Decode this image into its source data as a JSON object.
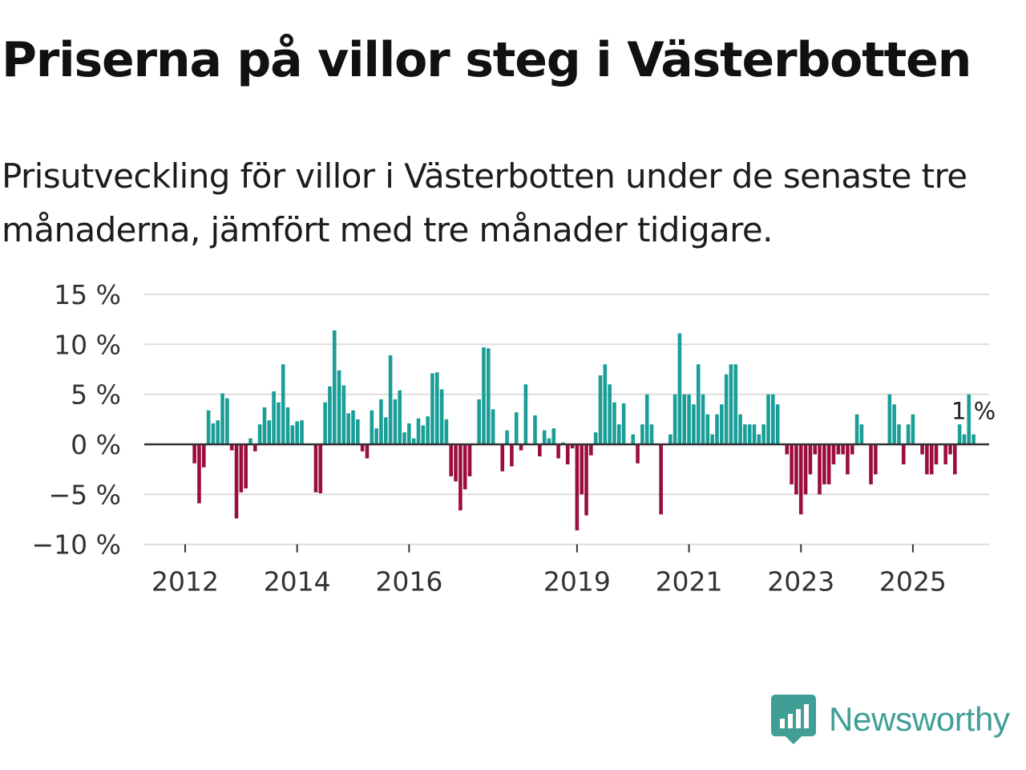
{
  "title": "Priserna på villor steg i Västerbotten",
  "subtitle": "Prisutveckling för villor i Västerbotten under de senaste tre månaderna, jämfört med tre månader tidigare.",
  "brand": {
    "name": "Newsworthy",
    "color": "#3f9f96",
    "icon": "newsworthy-logo-icon"
  },
  "colors": {
    "positive": "#1a9e98",
    "negative": "#9c0d3f",
    "grid": "#dddddd",
    "zero_line": "#333333",
    "text": "#333333"
  },
  "chart_data": {
    "type": "bar",
    "title": "Priserna på villor steg i Västerbotten",
    "subtitle": "Prisutveckling för villor i Västerbotten under de senaste tre månaderna, jämfört med tre månader tidigare.",
    "xlabel": "",
    "ylabel": "",
    "unit": "%",
    "ylim": [
      -10,
      15
    ],
    "yticks": [
      15,
      10,
      5,
      0,
      -5,
      -10
    ],
    "ytick_labels": [
      "15 %",
      "10 %",
      "5 %",
      "0 %",
      "−5 %",
      "−10 %"
    ],
    "x_ticks": [
      {
        "label": "2012",
        "index": 0
      },
      {
        "label": "2014",
        "index": 24
      },
      {
        "label": "2016",
        "index": 48
      },
      {
        "label": "2019",
        "index": 84
      },
      {
        "label": "2021",
        "index": 108
      },
      {
        "label": "2023",
        "index": 132
      },
      {
        "label": "2025",
        "index": 156
      }
    ],
    "start": "2011-10",
    "end": "2025-09",
    "grid": true,
    "last_value_label": "1 %",
    "values": [
      0,
      0,
      -1.9,
      -5.9,
      -2.3,
      3.4,
      2.1,
      2.4,
      5.1,
      4.6,
      -0.6,
      -7.4,
      -4.8,
      -4.4,
      0.6,
      -0.7,
      2.0,
      3.7,
      2.4,
      5.3,
      4.2,
      8.0,
      3.7,
      1.9,
      2.3,
      2.4,
      0,
      0,
      -4.8,
      -4.9,
      4.2,
      5.8,
      11.4,
      7.4,
      5.9,
      3.1,
      3.4,
      2.5,
      -0.7,
      -1.4,
      3.4,
      1.6,
      4.5,
      2.7,
      8.9,
      4.5,
      5.4,
      1.2,
      2.1,
      0.6,
      2.6,
      1.9,
      2.8,
      7.1,
      7.2,
      5.5,
      2.5,
      -3.2,
      -3.7,
      -6.6,
      -4.5,
      -3.2,
      0,
      4.5,
      9.7,
      9.6,
      3.5,
      0,
      -2.7,
      1.4,
      -2.2,
      3.2,
      -0.6,
      6.0,
      0,
      2.9,
      -1.2,
      1.4,
      0.6,
      1.6,
      -1.4,
      0.2,
      -2.0,
      -0.4,
      -8.6,
      -5.0,
      -7.1,
      -1.1,
      1.2,
      6.9,
      8.0,
      6.0,
      4.2,
      2.0,
      4.1,
      0,
      1.0,
      -1.9,
      2.0,
      5.0,
      2.0,
      0,
      -7.0,
      0,
      1.0,
      5.0,
      11.1,
      5.0,
      5.0,
      4.0,
      8.0,
      5.0,
      3.0,
      1.0,
      3.0,
      4.0,
      7.0,
      8.0,
      8.0,
      3.0,
      2.0,
      2.0,
      2.0,
      1.0,
      2.0,
      5.0,
      5.0,
      4.0,
      0,
      -1.0,
      -4.0,
      -5.0,
      -7.0,
      -5.0,
      -3.0,
      -1.0,
      -5.0,
      -4.0,
      -4.0,
      -2.0,
      -1.0,
      -1.0,
      -3.0,
      -1.0,
      3.0,
      2.0,
      0,
      -4.0,
      -3.0,
      0,
      0,
      5.0,
      4.0,
      2.0,
      -2.0,
      2.0,
      3.0,
      0,
      -1.0,
      -3.0,
      -3.0,
      -2.0,
      0,
      -2.0,
      -1.0,
      -3.0,
      2.0,
      1.0,
      5.0,
      1.0
    ]
  }
}
